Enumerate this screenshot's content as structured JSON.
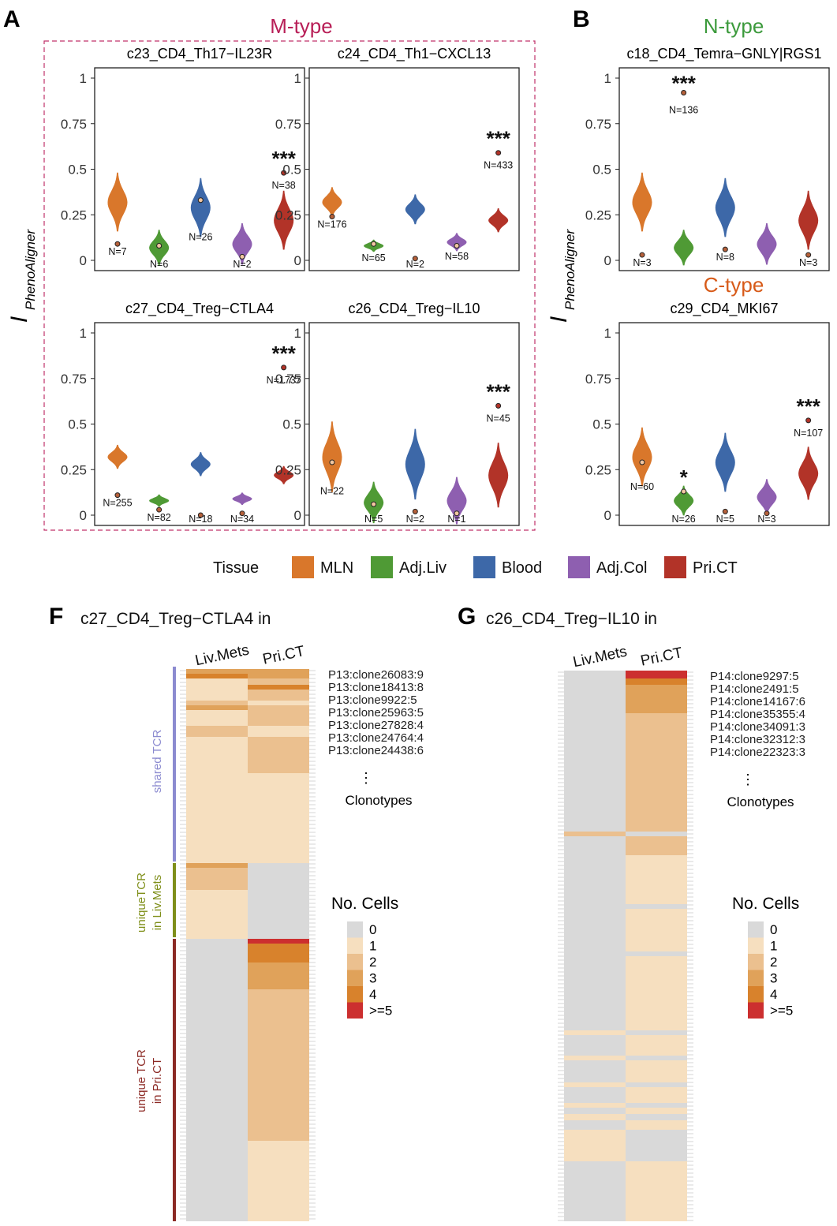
{
  "colors": {
    "tissue": {
      "MLN": "#d9772b",
      "Adj.Liv": "#4f9a35",
      "Blood": "#3d68a8",
      "Adj.Col": "#8e5fb0",
      "Pri.CT": "#b23328"
    },
    "mtype": "#b81f57",
    "ntype": "#3c9a3c",
    "ctype": "#d75a18",
    "shared": "#8c8bd0",
    "uniqueLiv": "#7f8f1a",
    "uniquePri": "#8c2a25",
    "cells": [
      "#d9d9d9",
      "#f6dfbf",
      "#ebc08f",
      "#e0a25a",
      "#d8822c",
      "#cc2f2f"
    ]
  },
  "panel_labels": {
    "A": "A",
    "B": "B",
    "F": "F",
    "G": "G"
  },
  "group_titles": {
    "mtype": "M-type",
    "ntype": "N-type",
    "ctype": "C-type"
  },
  "y_axis_label": {
    "main": "I",
    "sub": "PhenoAligner"
  },
  "legend": {
    "title": "Tissue",
    "items": [
      "MLN",
      "Adj.Liv",
      "Blood",
      "Adj.Col",
      "Pri.CT"
    ]
  },
  "chart_data": [
    {
      "type": "violin",
      "title": "c23_CD4_Th17−IL23R",
      "ylim": [
        0,
        1
      ],
      "yticks": [
        "0",
        "0.25",
        "0.5",
        "0.75",
        "1"
      ],
      "categories": [
        "MLN",
        "Adj.Liv",
        "Blood",
        "Adj.Col",
        "Pri.CT"
      ],
      "violin_center": [
        0.32,
        0.07,
        0.29,
        0.09,
        0.22
      ],
      "violin_spread": [
        0.1,
        0.06,
        0.1,
        0.07,
        0.1
      ],
      "points": [
        0.09,
        0.08,
        0.33,
        0.02,
        0.48
      ],
      "n_labels": [
        "N=7",
        "N=6",
        "N=26",
        "N=2",
        "N=38"
      ],
      "significance": [
        "",
        "",
        "",
        "",
        "***"
      ]
    },
    {
      "type": "violin",
      "title": "c24_CD4_Th1−CXCL13",
      "ylim": [
        0,
        1
      ],
      "yticks": [
        "0",
        "0.25",
        "0.5",
        "0.75",
        "1"
      ],
      "categories": [
        "MLN",
        "Adj.Liv",
        "Blood",
        "Adj.Col",
        "Pri.CT"
      ],
      "violin_center": [
        0.32,
        0.08,
        0.28,
        0.1,
        0.22
      ],
      "violin_spread": [
        0.05,
        0.02,
        0.05,
        0.03,
        0.04
      ],
      "points": [
        0.24,
        0.09,
        0.01,
        0.08,
        0.59
      ],
      "n_labels": [
        "N=176",
        "N=65",
        "N=2",
        "N=58",
        "N=433"
      ],
      "significance": [
        "",
        "",
        "",
        "",
        "***"
      ]
    },
    {
      "type": "violin",
      "title": "c18_CD4_Temra−GNLY|RGS1",
      "ylim": [
        0,
        1
      ],
      "yticks": [
        "0",
        "0.25",
        "0.5",
        "0.75",
        "1"
      ],
      "categories": [
        "MLN",
        "Adj.Liv",
        "Blood",
        "Adj.Col",
        "Pri.CT"
      ],
      "violin_center": [
        0.32,
        0.07,
        0.29,
        0.09,
        0.22
      ],
      "violin_spread": [
        0.1,
        0.06,
        0.1,
        0.07,
        0.1
      ],
      "points": [
        0.03,
        null,
        0.06,
        null,
        0.03
      ],
      "extra_point": {
        "value": 0.92,
        "label": "N=136",
        "significance": "***"
      },
      "n_labels": [
        "N=3",
        "",
        "N=8",
        "",
        "N=3"
      ],
      "significance": [
        "",
        "",
        "",
        "",
        ""
      ]
    },
    {
      "type": "violin",
      "title": "c27_CD4_Treg−CTLA4",
      "ylim": [
        0,
        1
      ],
      "yticks": [
        "0",
        "0.25",
        "0.5",
        "0.75",
        "1"
      ],
      "categories": [
        "MLN",
        "Adj.Liv",
        "Blood",
        "Adj.Col",
        "Pri.CT"
      ],
      "violin_center": [
        0.32,
        0.08,
        0.28,
        0.09,
        0.22
      ],
      "violin_spread": [
        0.04,
        0.02,
        0.04,
        0.02,
        0.03
      ],
      "points": [
        0.11,
        0.03,
        0.0,
        0.01,
        0.81
      ],
      "n_labels": [
        "N=255",
        "N=82",
        "N=18",
        "N=34",
        "N=1737"
      ],
      "significance": [
        "",
        "",
        "",
        "",
        "***"
      ]
    },
    {
      "type": "violin",
      "title": "c26_CD4_Treg−IL10",
      "ylim": [
        0,
        1
      ],
      "yticks": [
        "0",
        "0.25",
        "0.5",
        "0.75",
        "1"
      ],
      "categories": [
        "MLN",
        "Adj.Liv",
        "Blood",
        "Adj.Col",
        "Pri.CT"
      ],
      "violin_center": [
        0.32,
        0.07,
        0.28,
        0.08,
        0.22
      ],
      "violin_spread": [
        0.12,
        0.07,
        0.12,
        0.08,
        0.11
      ],
      "points": [
        0.29,
        0.06,
        0.02,
        0.01,
        0.6
      ],
      "n_labels": [
        "N=22",
        "N=5",
        "N=2",
        "N=1",
        "N=45"
      ],
      "significance": [
        "",
        "",
        "",
        "",
        "***"
      ]
    },
    {
      "type": "violin",
      "title": "c29_CD4_MKI67",
      "ylim": [
        0,
        1
      ],
      "yticks": [
        "0",
        "0.25",
        "0.5",
        "0.75",
        "1"
      ],
      "categories": [
        "MLN",
        "Adj.Liv",
        "Blood",
        "Adj.Col",
        "Pri.CT"
      ],
      "violin_center": [
        0.32,
        0.08,
        0.29,
        0.1,
        0.23
      ],
      "violin_spread": [
        0.1,
        0.05,
        0.1,
        0.06,
        0.09
      ],
      "points": [
        0.29,
        0.13,
        0.02,
        0.01,
        0.52
      ],
      "n_labels": [
        "N=60",
        "N=26",
        "N=5",
        "N=3",
        "N=107"
      ],
      "significance": [
        "",
        "*",
        "",
        "",
        "***"
      ]
    },
    {
      "type": "heatmap",
      "title": "c27_CD4_Treg−CTLA4 in",
      "columns": [
        "Liv.Mets",
        "Pri.CT"
      ],
      "groups": [
        "shared TCR",
        "uniqueTCR in Liv.Mets",
        "unique TCR in Pri.CT"
      ],
      "labeled_rows": [
        "P13:clone26083:9",
        "P13:clone18413:8",
        "P13:clone9922:5",
        "P13:clone25963:5",
        "P13:clone27828:4",
        "P13:clone24764:4",
        "P13:clone24438:6"
      ],
      "ellipsis": "⋮",
      "more_label": "Clonotypes",
      "legend": {
        "title": "No. Cells",
        "levels": [
          "0",
          "1",
          "2",
          "3",
          "4",
          ">=5"
        ]
      }
    },
    {
      "type": "heatmap",
      "title": "c26_CD4_Treg−IL10 in",
      "columns": [
        "Liv.Mets",
        "Pri.CT"
      ],
      "labeled_rows": [
        "P14:clone9297:5",
        "P14:clone2491:5",
        "P14:clone14167:6",
        "P14:clone35355:4",
        "P14:clone34091:3",
        "P14:clone32312:3",
        "P14:clone22323:3"
      ],
      "ellipsis": "⋮",
      "more_label": "Clonotypes",
      "legend": {
        "title": "No. Cells",
        "levels": [
          "0",
          "1",
          "2",
          "3",
          "4",
          ">=5"
        ]
      }
    }
  ]
}
